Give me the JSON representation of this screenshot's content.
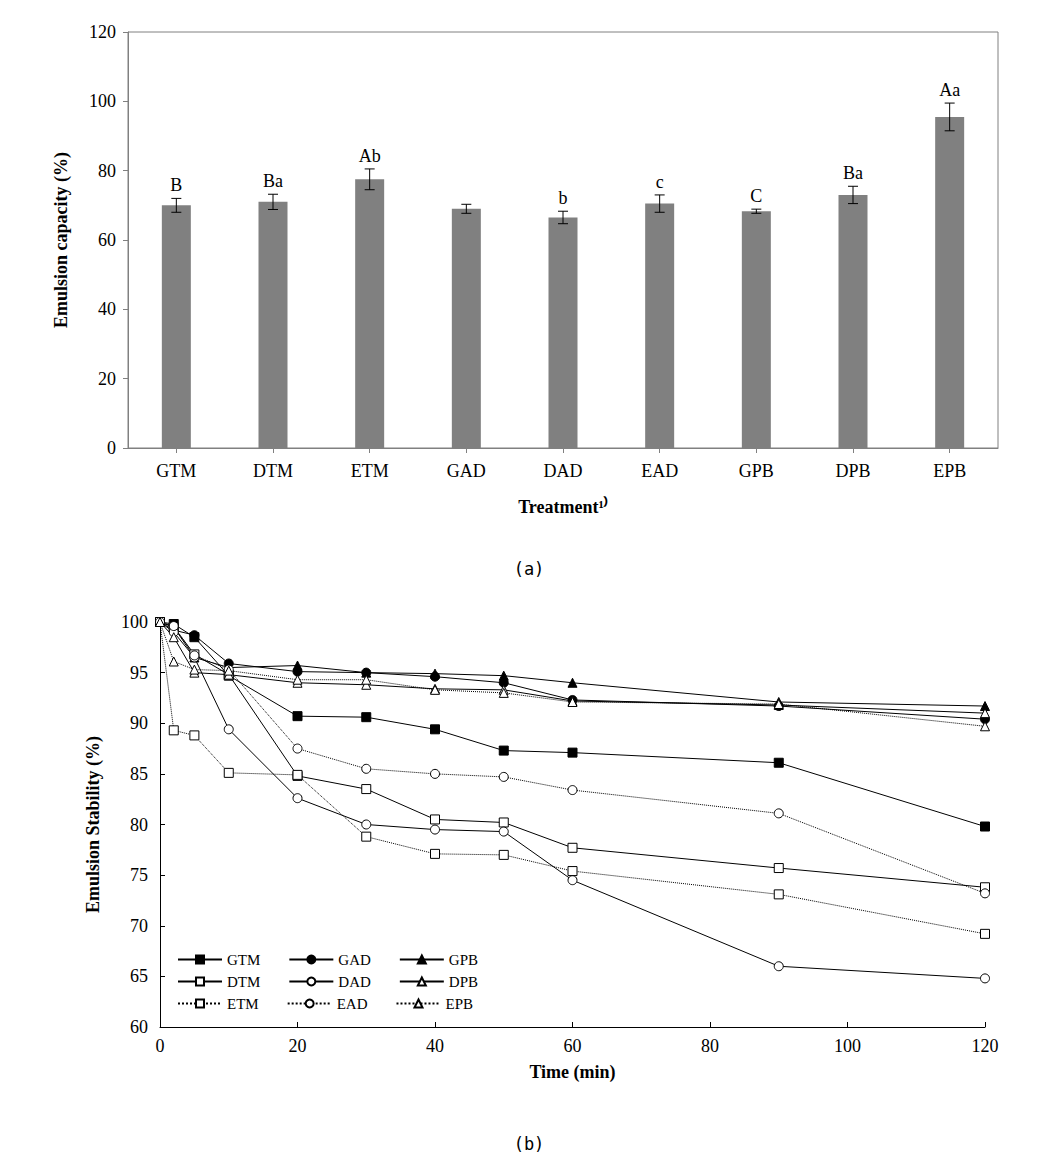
{
  "chart_data": [
    {
      "type": "bar",
      "title": "(a)",
      "x_label": "Treatment¹⁾",
      "y_label": "Emulsion capacity (%)",
      "categories": [
        "GTM",
        "DTM",
        "ETM",
        "GAD",
        "DAD",
        "EAD",
        "GPB",
        "DPB",
        "EPB"
      ],
      "values": [
        70,
        71,
        77.5,
        69,
        66.5,
        70.5,
        68.3,
        73,
        95.5
      ],
      "errors": [
        2,
        2.2,
        3,
        1.3,
        1.8,
        2.5,
        0.6,
        2.5,
        4
      ],
      "annotations": [
        "B",
        "Ba",
        "Ab",
        null,
        "b",
        "c",
        "C",
        "Ba",
        "Aa"
      ],
      "color": "#808080",
      "ylim": [
        0,
        120
      ],
      "yticks": [
        0,
        20,
        40,
        60,
        80,
        100,
        120
      ],
      "grid": false
    },
    {
      "type": "line",
      "title": "(b)",
      "x_label": "Time (min)",
      "y_label": "Emulsion Stability (%)",
      "x": [
        0,
        2,
        5,
        10,
        20,
        30,
        40,
        50,
        60,
        90,
        120
      ],
      "series": [
        {
          "name": "GTM",
          "color": "#000000",
          "marker": "filled_square",
          "line_style": "solid",
          "values": [
            100,
            99.8,
            98.5,
            94.7,
            90.7,
            90.6,
            89.4,
            87.3,
            87.1,
            86.1,
            79.8
          ]
        },
        {
          "name": "GAD",
          "color": "#000000",
          "marker": "filled_circle",
          "line_style": "solid",
          "values": [
            100,
            99.2,
            98.7,
            95.9,
            95.1,
            95.0,
            94.6,
            94.0,
            92.3,
            91.7,
            90.4
          ]
        },
        {
          "name": "GPB",
          "color": "#000000",
          "marker": "filled_triangle",
          "line_style": "solid",
          "values": [
            100,
            99.5,
            96.5,
            95.5,
            95.7,
            95.0,
            94.9,
            94.7,
            94.0,
            92.1,
            91.7
          ]
        },
        {
          "name": "DTM",
          "color": "#000000",
          "marker": "open_square",
          "line_style": "solid",
          "values": [
            100,
            99.5,
            96.8,
            94.8,
            84.8,
            83.5,
            80.5,
            80.2,
            77.7,
            75.7,
            73.8
          ]
        },
        {
          "name": "DAD",
          "color": "#000000",
          "marker": "open_circle",
          "line_style": "solid",
          "values": [
            100,
            99.0,
            96.5,
            89.4,
            82.6,
            80.0,
            79.5,
            79.3,
            74.5,
            66.0,
            64.8
          ]
        },
        {
          "name": "DPB",
          "color": "#000000",
          "marker": "open_triangle",
          "line_style": "solid",
          "values": [
            100,
            98.5,
            95.0,
            94.8,
            94.0,
            93.8,
            93.4,
            93.3,
            92.2,
            91.8,
            91.0
          ]
        },
        {
          "name": "ETM",
          "color": "#000000",
          "marker": "open_square",
          "line_style": "dotted",
          "values": [
            100,
            89.3,
            88.8,
            85.1,
            84.9,
            78.8,
            77.1,
            77.0,
            75.4,
            73.1,
            69.2
          ]
        },
        {
          "name": "EAD",
          "color": "#000000",
          "marker": "open_circle",
          "line_style": "dotted",
          "values": [
            100,
            99.6,
            96.7,
            95.3,
            87.5,
            85.5,
            85.0,
            84.7,
            83.4,
            81.1,
            73.2
          ]
        },
        {
          "name": "EPB",
          "color": "#000000",
          "marker": "open_triangle",
          "line_style": "dotted",
          "values": [
            100,
            96.1,
            95.3,
            95.2,
            94.3,
            94.3,
            93.3,
            93.0,
            92.1,
            91.9,
            89.7
          ]
        }
      ],
      "legend": "lower left",
      "xlim": [
        0,
        120
      ],
      "xticks": [
        0,
        20,
        40,
        60,
        80,
        100,
        120
      ],
      "ylim": [
        60,
        100
      ],
      "yticks": [
        60,
        65,
        70,
        75,
        80,
        85,
        90,
        95,
        100
      ],
      "grid": false
    }
  ]
}
